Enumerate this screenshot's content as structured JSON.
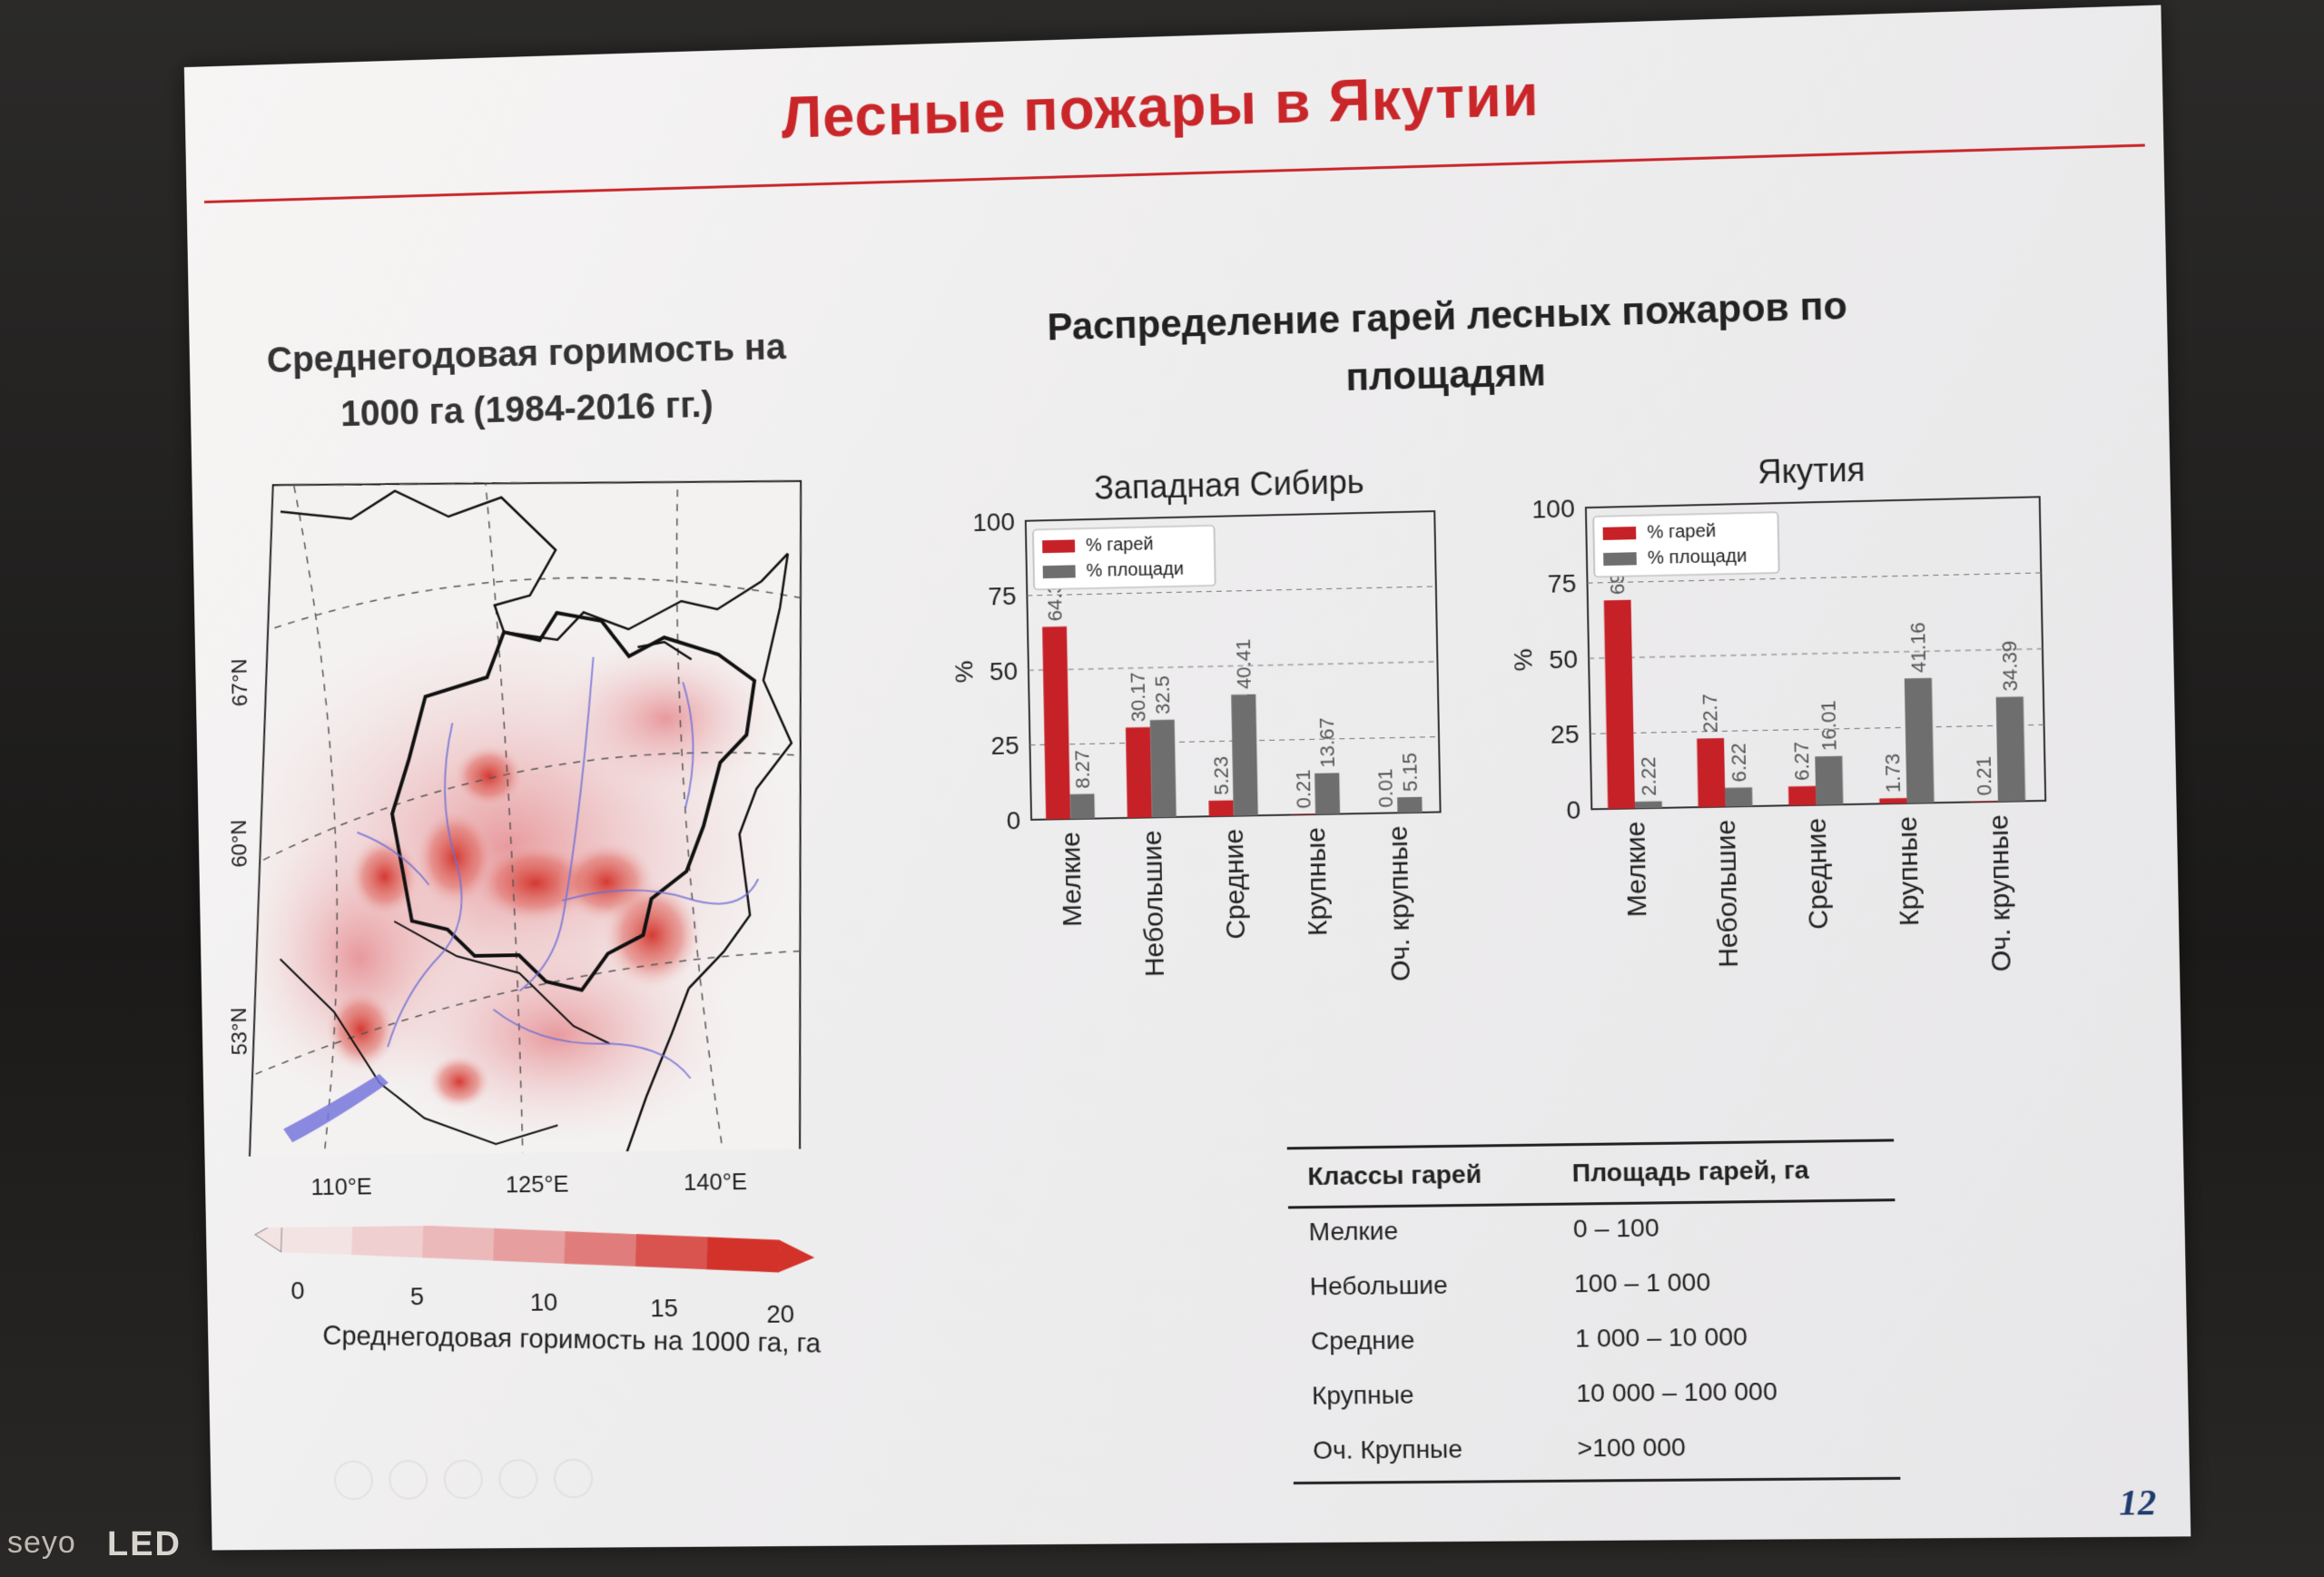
{
  "slide": {
    "title": "Лесные пожары в Якутии",
    "page_number": "12"
  },
  "monitor": {
    "label": "seyo",
    "brand": "LED"
  },
  "map": {
    "heading": "Среднегодовая горимость на 1000 га (1984-2016 гг.)",
    "lat_labels": [
      "67°N",
      "60°N",
      "53°N"
    ],
    "lon_labels": [
      "110°E",
      "125°E",
      "140°E"
    ],
    "colorbar": {
      "ticks": [
        "0",
        "5",
        "10",
        "15",
        "20"
      ],
      "label": "Среднегодовая горимость на 1000 га, га",
      "colors": [
        "#f3e3e3",
        "#f0cfd0",
        "#ecb9bb",
        "#e79e9f",
        "#e07d7c",
        "#d9544f",
        "#d3322a"
      ]
    }
  },
  "charts_heading": "Распределение гарей лесных пожаров по площадям",
  "chart_data": [
    {
      "type": "bar",
      "title": "Западная Сибирь",
      "ylabel": "%",
      "ylim": [
        0,
        100
      ],
      "yticks": [
        "0",
        "25",
        "50",
        "75",
        "100"
      ],
      "grid": true,
      "legend_position": "top-left",
      "categories": [
        "Мелкие",
        "Небольшие",
        "Средние",
        "Крупные",
        "Оч. крупные"
      ],
      "series": [
        {
          "name": "% гарей",
          "color": "#c62127",
          "values": [
            64.39,
            30.17,
            5.23,
            0.21,
            0.01
          ],
          "labels": [
            "64.39",
            "30.17",
            "5.23",
            "0.21",
            "0.01"
          ]
        },
        {
          "name": "% площади",
          "color": "#6e6e6e",
          "values": [
            8.27,
            32.5,
            40.41,
            13.67,
            5.15
          ],
          "labels": [
            "8.27",
            "32.5",
            "40.41",
            "13.67",
            "5.15"
          ]
        }
      ]
    },
    {
      "type": "bar",
      "title": "Якутия",
      "ylabel": "%",
      "ylim": [
        0,
        100
      ],
      "yticks": [
        "0",
        "25",
        "50",
        "75",
        "100"
      ],
      "grid": true,
      "legend_position": "top-left",
      "categories": [
        "Мелкие",
        "Небольшие",
        "Средние",
        "Крупные",
        "Оч. крупные"
      ],
      "series": [
        {
          "name": "% гарей",
          "color": "#c62127",
          "values": [
            69.1,
            22.7,
            6.27,
            1.73,
            0.21
          ],
          "labels": [
            "69.",
            "22.7",
            "6.27",
            "1.73",
            "0.21"
          ]
        },
        {
          "name": "% площади",
          "color": "#6e6e6e",
          "values": [
            2.22,
            6.22,
            16.01,
            41.16,
            34.39
          ],
          "labels": [
            "2.22",
            "6.22",
            "16.01",
            "41.16",
            "34.39"
          ]
        }
      ]
    }
  ],
  "table": {
    "headers": [
      "Классы гарей",
      "Площадь гарей, га"
    ],
    "rows": [
      [
        "Мелкие",
        "0 – 100"
      ],
      [
        "Небольшие",
        "100 – 1 000"
      ],
      [
        "Средние",
        "1 000 – 10 000"
      ],
      [
        "Крупные",
        "10 000 – 100 000"
      ],
      [
        "Оч. Крупные",
        ">100 000"
      ]
    ]
  }
}
